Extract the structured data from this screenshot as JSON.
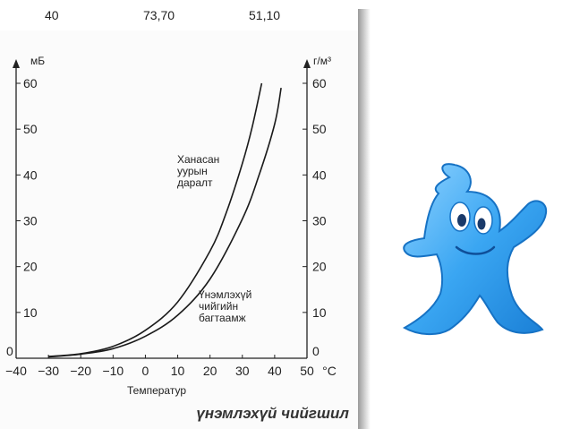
{
  "top_values": [
    "40",
    "73,70",
    "51,10"
  ],
  "caption": "үнэмлэхүй чийгшил",
  "chart_data": {
    "type": "line",
    "xlabel": "Температур",
    "x_unit": "°C",
    "ylabel_left": "мБ",
    "ylabel_right": "г/м³",
    "xlim": [
      -40,
      50
    ],
    "ylim": [
      0,
      60
    ],
    "x_ticks": [
      "−40",
      "−30",
      "−20",
      "−10",
      "0",
      "10",
      "20",
      "30",
      "40",
      "50"
    ],
    "y_ticks_left": [
      "0",
      "10",
      "20",
      "30",
      "40",
      "50",
      "60"
    ],
    "y_ticks_right": [
      "0",
      "10",
      "20",
      "30",
      "40",
      "50",
      "60"
    ],
    "series": [
      {
        "name": "Ханасан уурын даралт",
        "x": [
          -30,
          -20,
          -10,
          0,
          10,
          20,
          25,
          30,
          33,
          36
        ],
        "y": [
          0.4,
          1.0,
          2.6,
          6.1,
          12.3,
          23.4,
          31.7,
          42.5,
          50.3,
          60
        ]
      },
      {
        "name": "Үнэмлэхүй чийгийн багтаамж",
        "x": [
          -30,
          -20,
          -10,
          0,
          10,
          20,
          30,
          35,
          40,
          42
        ],
        "y": [
          0.3,
          0.9,
          2.1,
          4.8,
          9.4,
          17.3,
          30.4,
          39.6,
          51.1,
          59
        ]
      }
    ],
    "annotations": [
      {
        "lines": [
          "Ханасан",
          "уурын",
          "даралт"
        ]
      },
      {
        "lines": [
          "Үнэмлэхүй",
          "чийгийн",
          "багтаамж"
        ]
      }
    ],
    "grid": false
  }
}
